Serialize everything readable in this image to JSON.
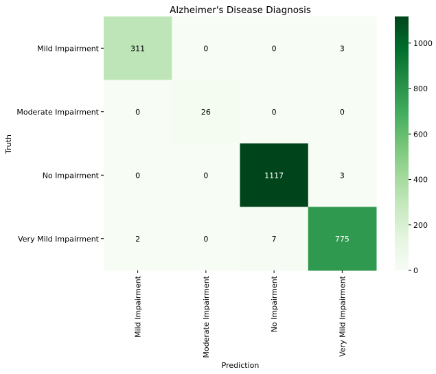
{
  "chart_data": {
    "type": "heatmap",
    "title": "Alzheimer's Disease Diagnosis",
    "xlabel": "Prediction",
    "ylabel": "Truth",
    "x_categories": [
      "Mild Impairment",
      "Moderate Impairment",
      "No Impairment",
      "Very Mild Impairment"
    ],
    "y_categories": [
      "Mild Impairment",
      "Moderate Impairment",
      "No Impairment",
      "Very Mild Impairment"
    ],
    "values": [
      [
        311,
        0,
        0,
        3
      ],
      [
        0,
        26,
        0,
        0
      ],
      [
        0,
        0,
        1117,
        3
      ],
      [
        2,
        0,
        7,
        775
      ]
    ],
    "colormap": "Greens",
    "colorbar": {
      "min": 0,
      "max": 1117,
      "ticks": [
        0,
        200,
        400,
        600,
        800,
        1000
      ]
    }
  }
}
